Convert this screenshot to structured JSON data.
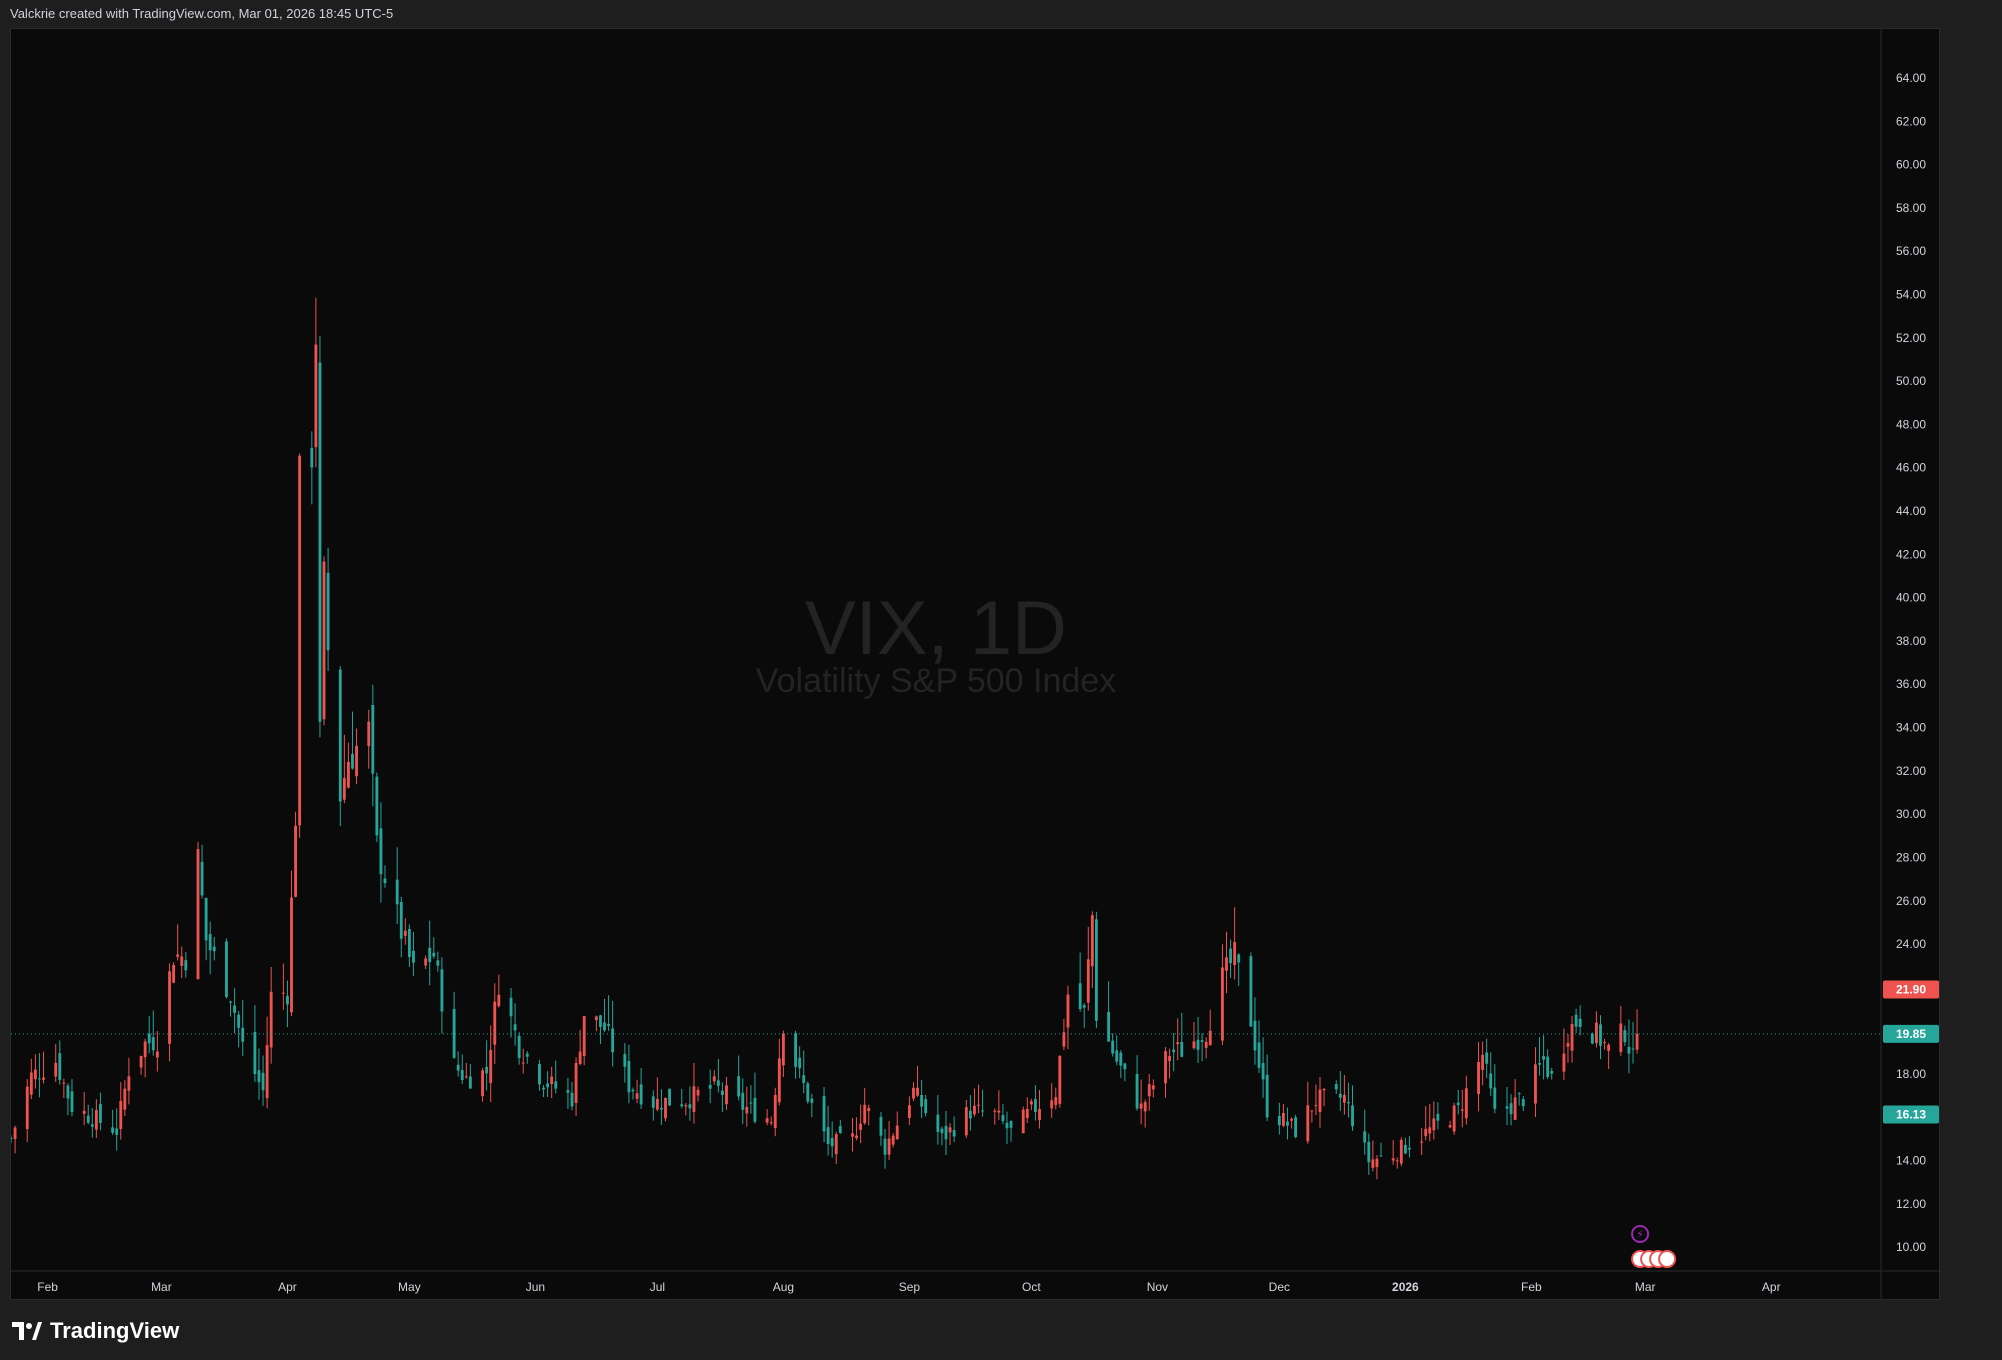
{
  "header": {
    "attribution": "Valckrie created with TradingView.com, Mar 01, 2026 18:45 UTC-5"
  },
  "watermark": {
    "symbol": "VIX, 1D",
    "description": "Volatility S&P 500 Index"
  },
  "footer": {
    "brand": "TradingView"
  },
  "colors": {
    "up": "#26a69a",
    "down": "#ef5350",
    "background": "#0a0a0a",
    "axis_text": "#d1d4dc",
    "price_line": "#26a69a"
  },
  "chart_data": {
    "type": "candlestick",
    "symbol": "VIX",
    "interval": "1D",
    "ylim": [
      8.9,
      65.8
    ],
    "y_ticks": [
      "64.00",
      "62.00",
      "60.00",
      "58.00",
      "56.00",
      "54.00",
      "52.00",
      "50.00",
      "48.00",
      "46.00",
      "44.00",
      "42.00",
      "40.00",
      "38.00",
      "36.00",
      "34.00",
      "32.00",
      "30.00",
      "28.00",
      "26.00",
      "24.00",
      "22.00",
      "20.00",
      "18.00",
      "16.00",
      "14.00",
      "12.00",
      "10.00"
    ],
    "x_ticks": [
      {
        "label": "Feb",
        "date": "2025-02-01"
      },
      {
        "label": "Mar",
        "date": "2025-03-01"
      },
      {
        "label": "Apr",
        "date": "2025-04-01"
      },
      {
        "label": "May",
        "date": "2025-05-01"
      },
      {
        "label": "Jun",
        "date": "2025-06-01"
      },
      {
        "label": "Jul",
        "date": "2025-07-01"
      },
      {
        "label": "Aug",
        "date": "2025-08-01"
      },
      {
        "label": "Sep",
        "date": "2025-09-01"
      },
      {
        "label": "Oct",
        "date": "2025-10-01"
      },
      {
        "label": "Nov",
        "date": "2025-11-01"
      },
      {
        "label": "Dec",
        "date": "2025-12-01"
      },
      {
        "label": "2026",
        "date": "2026-01-01",
        "bold": true
      },
      {
        "label": "Feb",
        "date": "2026-02-01"
      },
      {
        "label": "Mar",
        "date": "2026-03-01"
      },
      {
        "label": "Apr",
        "date": "2026-04-01"
      }
    ],
    "x_range": [
      "2025-01-23",
      "2026-04-28"
    ],
    "price_labels": [
      {
        "value": 21.9,
        "text": "21.90",
        "color": "#ef5350"
      },
      {
        "value": 19.85,
        "text": "19.85",
        "color": "#26a69a",
        "line": true
      },
      {
        "value": 16.13,
        "text": "16.13",
        "color": "#26a69a"
      }
    ],
    "anchors": [
      [
        "2025-01-23",
        15.0
      ],
      [
        "2025-01-28",
        17.9
      ],
      [
        "2025-02-03",
        18.6
      ],
      [
        "2025-02-07",
        16.5
      ],
      [
        "2025-02-12",
        16.0
      ],
      [
        "2025-02-18",
        15.4
      ],
      [
        "2025-02-21",
        18.2
      ],
      [
        "2025-02-25",
        19.4
      ],
      [
        "2025-02-28",
        19.6
      ],
      [
        "2025-03-04",
        23.5
      ],
      [
        "2025-03-07",
        23.4
      ],
      [
        "2025-03-10",
        27.9
      ],
      [
        "2025-03-12",
        24.2
      ],
      [
        "2025-03-18",
        21.7
      ],
      [
        "2025-03-21",
        19.3
      ],
      [
        "2025-03-26",
        17.2
      ],
      [
        "2025-03-28",
        21.6
      ],
      [
        "2025-04-01",
        21.8
      ],
      [
        "2025-04-03",
        30.0
      ],
      [
        "2025-04-04",
        45.3
      ],
      [
        "2025-04-07",
        46.9
      ],
      [
        "2025-04-08",
        52.3
      ],
      [
        "2025-04-09",
        33.6
      ],
      [
        "2025-04-10",
        40.7
      ],
      [
        "2025-04-11",
        37.6
      ],
      [
        "2025-04-14",
        30.9
      ],
      [
        "2025-04-16",
        32.6
      ],
      [
        "2025-04-21",
        33.8
      ],
      [
        "2025-04-23",
        28.5
      ],
      [
        "2025-04-28",
        25.2
      ],
      [
        "2025-05-02",
        22.7
      ],
      [
        "2025-05-07",
        23.5
      ],
      [
        "2025-05-12",
        18.4
      ],
      [
        "2025-05-15",
        17.8
      ],
      [
        "2025-05-20",
        18.1
      ],
      [
        "2025-05-23",
        22.3
      ],
      [
        "2025-05-28",
        19.3
      ],
      [
        "2025-06-03",
        17.7
      ],
      [
        "2025-06-10",
        16.9
      ],
      [
        "2025-06-13",
        20.8
      ],
      [
        "2025-06-18",
        20.1
      ],
      [
        "2025-06-24",
        17.5
      ],
      [
        "2025-06-30",
        16.7
      ],
      [
        "2025-07-08",
        16.8
      ],
      [
        "2025-07-15",
        17.4
      ],
      [
        "2025-07-22",
        16.5
      ],
      [
        "2025-07-29",
        15.9
      ],
      [
        "2025-08-01",
        20.4
      ],
      [
        "2025-08-05",
        17.9
      ],
      [
        "2025-08-12",
        14.7
      ],
      [
        "2025-08-18",
        15.0
      ],
      [
        "2025-08-21",
        16.6
      ],
      [
        "2025-08-26",
        14.6
      ],
      [
        "2025-09-02",
        17.2
      ],
      [
        "2025-09-09",
        15.0
      ],
      [
        "2025-09-16",
        16.3
      ],
      [
        "2025-09-22",
        16.1
      ],
      [
        "2025-09-26",
        15.3
      ],
      [
        "2025-10-01",
        16.3
      ],
      [
        "2025-10-07",
        17.2
      ],
      [
        "2025-10-10",
        21.7
      ],
      [
        "2025-10-14",
        20.8
      ],
      [
        "2025-10-16",
        25.3
      ],
      [
        "2025-10-17",
        20.8
      ],
      [
        "2025-10-22",
        18.6
      ],
      [
        "2025-10-28",
        16.4
      ],
      [
        "2025-11-04",
        19.0
      ],
      [
        "2025-11-07",
        19.1
      ],
      [
        "2025-11-13",
        20.0
      ],
      [
        "2025-11-17",
        22.4
      ],
      [
        "2025-11-20",
        23.4
      ],
      [
        "2025-11-24",
        20.5
      ],
      [
        "2025-11-28",
        16.4
      ],
      [
        "2025-12-05",
        15.4
      ],
      [
        "2025-12-10",
        16.8
      ],
      [
        "2025-12-17",
        16.9
      ],
      [
        "2025-12-23",
        14.0
      ],
      [
        "2025-12-29",
        14.3
      ],
      [
        "2026-01-07",
        15.4
      ],
      [
        "2026-01-14",
        16.3
      ],
      [
        "2026-01-20",
        18.9
      ],
      [
        "2026-01-23",
        16.1
      ],
      [
        "2026-01-30",
        16.9
      ],
      [
        "2026-02-04",
        18.6
      ],
      [
        "2026-02-06",
        17.8
      ],
      [
        "2026-02-10",
        20.0
      ],
      [
        "2026-02-13",
        20.6
      ],
      [
        "2026-02-18",
        19.6
      ],
      [
        "2026-02-20",
        19.1
      ],
      [
        "2026-02-24",
        20.0
      ],
      [
        "2026-02-26",
        18.6
      ],
      [
        "2026-02-27",
        19.85
      ]
    ]
  }
}
